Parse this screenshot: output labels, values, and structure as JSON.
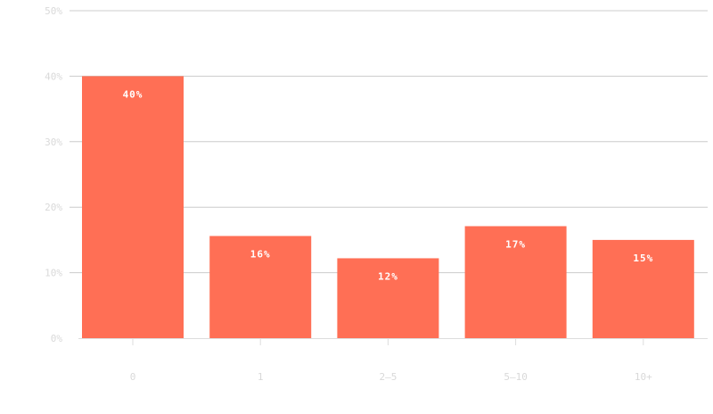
{
  "chart_data": {
    "type": "bar",
    "categories": [
      "0",
      "1",
      "2–5",
      "5–10",
      "10+"
    ],
    "values": [
      40,
      15.6,
      12.2,
      17.1,
      15.0
    ],
    "data_labels": [
      "40%",
      "16%",
      "12%",
      "17%",
      "15%"
    ],
    "title": "",
    "xlabel": "",
    "ylabel": "",
    "ylim": [
      0,
      50
    ],
    "yticks": [
      0,
      10,
      20,
      30,
      40,
      50
    ],
    "ytick_labels": [
      "0%",
      "10%",
      "20%",
      "30%",
      "40%",
      "50%"
    ],
    "grid": true,
    "legend": "none",
    "colors": {
      "bar": "#ff6f55",
      "gridline": "#cccccc",
      "baseline": "#dddddd",
      "tick_text": "#d9d9d9",
      "label_text": "#ffffff"
    }
  }
}
